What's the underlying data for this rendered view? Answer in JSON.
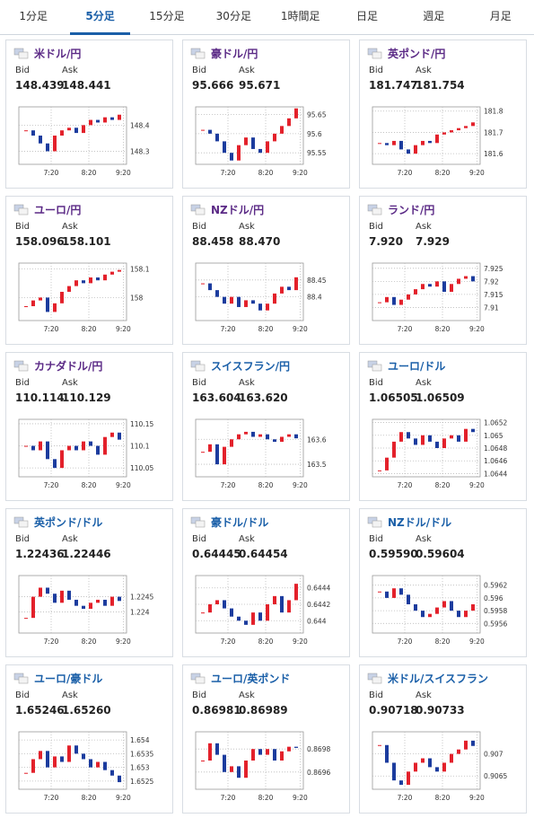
{
  "tabs": [
    "1分足",
    "5分足",
    "15分足",
    "30分足",
    "1時間足",
    "日足",
    "週足",
    "月足"
  ],
  "active_tab": 1,
  "bid_label": "Bid",
  "ask_label": "Ask",
  "panels": [
    {
      "name": "米ドル/円",
      "color": "#5b2a86",
      "bid": "148.439",
      "ask": "148.441",
      "ylim": [
        148.25,
        148.47
      ],
      "yticks": [
        148.4,
        148.3
      ],
      "xlabels": [
        "7:20",
        "8:20",
        "9:20"
      ],
      "closes": [
        148.38,
        148.36,
        148.33,
        148.3,
        148.36,
        148.38,
        148.39,
        148.37,
        148.4,
        148.42,
        148.41,
        148.43,
        148.42,
        148.44
      ]
    },
    {
      "name": "豪ドル/円",
      "color": "#5b2a86",
      "bid": "95.666",
      "ask": "95.671",
      "ylim": [
        95.52,
        95.67
      ],
      "yticks": [
        95.65,
        95.6,
        95.55
      ],
      "xlabels": [
        "7:20",
        "8:20",
        "9:20"
      ],
      "closes": [
        95.61,
        95.6,
        95.58,
        95.55,
        95.53,
        95.57,
        95.59,
        95.56,
        95.55,
        95.58,
        95.6,
        95.62,
        95.64,
        95.666
      ]
    },
    {
      "name": "英ポンド/円",
      "color": "#5b2a86",
      "bid": "181.747",
      "ask": "181.754",
      "ylim": [
        181.55,
        181.82
      ],
      "yticks": [
        181.8,
        181.7,
        181.6
      ],
      "xlabels": [
        "7:20",
        "8:20",
        "9:20"
      ],
      "closes": [
        181.65,
        181.64,
        181.66,
        181.62,
        181.6,
        181.64,
        181.66,
        181.65,
        181.69,
        181.7,
        181.71,
        181.72,
        181.73,
        181.747
      ]
    },
    {
      "name": "ユーロ/円",
      "color": "#5b2a86",
      "bid": "158.096",
      "ask": "158.101",
      "ylim": [
        157.92,
        158.12
      ],
      "yticks": [
        158.1,
        158
      ],
      "xlabels": [
        "7:20",
        "8:20",
        "9:20"
      ],
      "closes": [
        157.97,
        157.99,
        158,
        157.95,
        157.98,
        158.02,
        158.04,
        158.06,
        158.05,
        158.07,
        158.06,
        158.08,
        158.09,
        158.096
      ]
    },
    {
      "name": "NZドル/円",
      "color": "#5b2a86",
      "bid": "88.458",
      "ask": "88.470",
      "ylim": [
        88.33,
        88.5
      ],
      "yticks": [
        88.45,
        88.4
      ],
      "xlabels": [
        "7:20",
        "8:20",
        "9:20"
      ],
      "closes": [
        88.44,
        88.42,
        88.4,
        88.38,
        88.4,
        88.37,
        88.39,
        88.38,
        88.36,
        88.38,
        88.41,
        88.43,
        88.42,
        88.458
      ]
    },
    {
      "name": "ランド/円",
      "color": "#5b2a86",
      "bid": "7.920",
      "ask": "7.929",
      "ylim": [
        7.905,
        7.927
      ],
      "yticks": [
        7.925,
        7.92,
        7.915,
        7.91
      ],
      "xlabels": [
        "7:20",
        "8:20",
        "9:20"
      ],
      "closes": [
        7.912,
        7.914,
        7.911,
        7.913,
        7.915,
        7.917,
        7.919,
        7.918,
        7.92,
        7.916,
        7.919,
        7.921,
        7.922,
        7.92
      ]
    },
    {
      "name": "カナダドル/円",
      "color": "#5b2a86",
      "bid": "110.114",
      "ask": "110.129",
      "ylim": [
        110.03,
        110.16
      ],
      "yticks": [
        110.15,
        110.1,
        110.05
      ],
      "xlabels": [
        "7:20",
        "8:20",
        "9:20"
      ],
      "closes": [
        110.1,
        110.09,
        110.11,
        110.07,
        110.05,
        110.09,
        110.1,
        110.09,
        110.11,
        110.1,
        110.08,
        110.12,
        110.13,
        110.114
      ]
    },
    {
      "name": "スイスフラン/円",
      "color": "#1a5fa8",
      "bid": "163.604",
      "ask": "163.620",
      "ylim": [
        163.45,
        163.68
      ],
      "yticks": [
        163.6,
        163.5
      ],
      "xlabels": [
        "7:20",
        "8:20",
        "9:20"
      ],
      "closes": [
        163.55,
        163.58,
        163.5,
        163.57,
        163.6,
        163.62,
        163.63,
        163.61,
        163.62,
        163.6,
        163.59,
        163.61,
        163.62,
        163.604
      ]
    },
    {
      "name": "ユーロ/ドル",
      "color": "#1a5fa8",
      "bid": "1.06505",
      "ask": "1.06509",
      "ylim": [
        1.06435,
        1.06525
      ],
      "yticks": [
        1.0652,
        1.065,
        1.0648,
        1.0646,
        1.0644
      ],
      "xlabels": [
        "7:20",
        "8:20",
        "9:20"
      ],
      "closes": [
        1.06445,
        1.06465,
        1.0649,
        1.06505,
        1.06495,
        1.06485,
        1.065,
        1.0649,
        1.0648,
        1.06495,
        1.065,
        1.0649,
        1.0651,
        1.06505
      ]
    },
    {
      "name": "英ポンド/ドル",
      "color": "#1a5fa8",
      "bid": "1.22436",
      "ask": "1.22446",
      "ylim": [
        1.2233,
        1.2252
      ],
      "yticks": [
        1.2245,
        1.224
      ],
      "xlabels": [
        "7:20",
        "8:20",
        "9:20"
      ],
      "closes": [
        1.2238,
        1.2245,
        1.2248,
        1.2246,
        1.2243,
        1.2247,
        1.2244,
        1.2242,
        1.2241,
        1.2243,
        1.2244,
        1.2242,
        1.2245,
        1.22436
      ]
    },
    {
      "name": "豪ドル/ドル",
      "color": "#1a5fa8",
      "bid": "0.64445",
      "ask": "0.64454",
      "ylim": [
        0.64385,
        0.64455
      ],
      "yticks": [
        0.6444,
        0.6442,
        0.644
      ],
      "xlabels": [
        "7:20",
        "8:20",
        "9:20"
      ],
      "closes": [
        0.6441,
        0.6442,
        0.64425,
        0.64415,
        0.64405,
        0.644,
        0.64395,
        0.6441,
        0.644,
        0.6442,
        0.6443,
        0.6441,
        0.64425,
        0.64445
      ]
    },
    {
      "name": "NZドル/ドル",
      "color": "#1a5fa8",
      "bid": "0.59590",
      "ask": "0.59604",
      "ylim": [
        0.59545,
        0.59635
      ],
      "yticks": [
        0.5962,
        0.596,
        0.5958,
        0.5956
      ],
      "xlabels": [
        "7:20",
        "8:20",
        "9:20"
      ],
      "closes": [
        0.5961,
        0.596,
        0.59615,
        0.59605,
        0.5959,
        0.5958,
        0.5957,
        0.59575,
        0.59585,
        0.59595,
        0.5958,
        0.5957,
        0.5958,
        0.5959
      ]
    },
    {
      "name": "ユーロ/豪ドル",
      "color": "#1a5fa8",
      "bid": "1.65246",
      "ask": "1.65260",
      "ylim": [
        1.6522,
        1.6543
      ],
      "yticks": [
        1.654,
        1.6535,
        1.653,
        1.6525
      ],
      "xlabels": [
        "7:20",
        "8:20",
        "9:20"
      ],
      "closes": [
        1.6528,
        1.6533,
        1.6536,
        1.653,
        1.6534,
        1.6532,
        1.6538,
        1.6535,
        1.6533,
        1.653,
        1.6532,
        1.6529,
        1.6527,
        1.65246
      ]
    },
    {
      "name": "ユーロ/英ポンド",
      "color": "#1a5fa8",
      "bid": "0.86981",
      "ask": "0.86989",
      "ylim": [
        0.86945,
        0.86995
      ],
      "yticks": [
        0.8698,
        0.8696
      ],
      "xlabels": [
        "7:20",
        "8:20",
        "9:20"
      ],
      "closes": [
        0.8697,
        0.86985,
        0.86975,
        0.8696,
        0.86965,
        0.86955,
        0.8697,
        0.8698,
        0.86975,
        0.8698,
        0.8697,
        0.86978,
        0.86982,
        0.86981
      ]
    },
    {
      "name": "米ドル/スイスフラン",
      "color": "#1a5fa8",
      "bid": "0.90718",
      "ask": "0.90733",
      "ylim": [
        0.9062,
        0.9075
      ],
      "yticks": [
        0.907,
        0.9065
      ],
      "xlabels": [
        "7:20",
        "8:20",
        "9:20"
      ],
      "closes": [
        0.9072,
        0.9068,
        0.9064,
        0.9063,
        0.9066,
        0.9068,
        0.9069,
        0.9067,
        0.9066,
        0.9068,
        0.907,
        0.9071,
        0.9073,
        0.90718
      ]
    }
  ]
}
